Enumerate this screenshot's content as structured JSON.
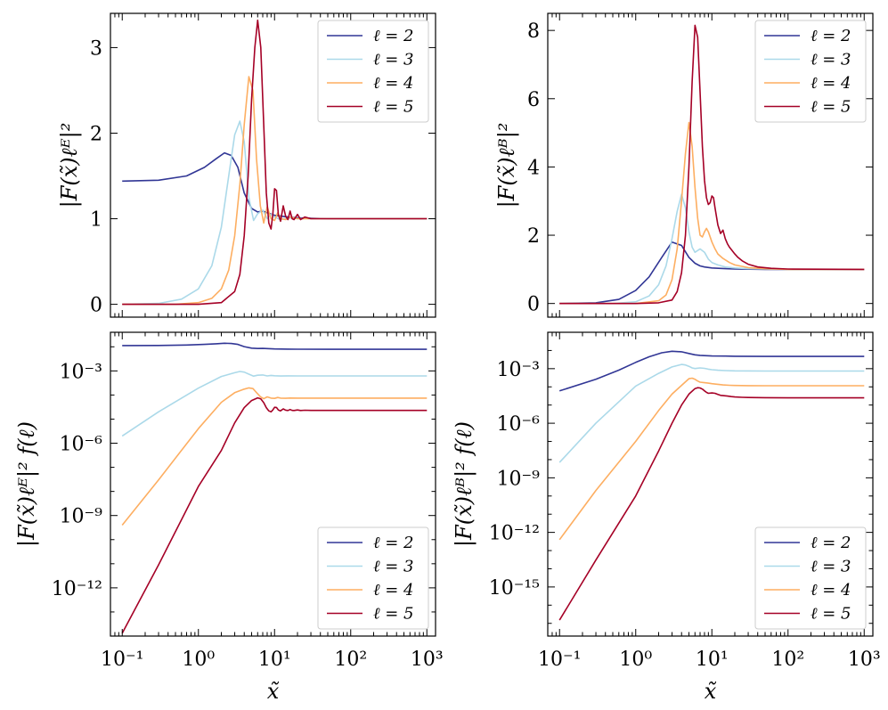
{
  "colors": {
    "l2": "#313695",
    "l3": "#abd9e9",
    "l4": "#fdae61",
    "l5": "#a50026"
  },
  "chart_data": [
    {
      "type": "line",
      "panel": "top-left",
      "xscale": "log",
      "yscale": "linear",
      "xlim": [
        0.07,
        1300
      ],
      "ylim": [
        -0.15,
        3.4
      ],
      "yticks": [
        0,
        1,
        2,
        3
      ],
      "ytick_labels": [
        "0",
        "1",
        "2",
        "3"
      ],
      "xlabel": "",
      "ylabel": "|F(x̃)ℓᴱ|²",
      "legend_position": "top-right",
      "series": [
        {
          "name": "ℓ = 2",
          "color_key": "l2",
          "x": [
            0.1,
            0.3,
            0.7,
            1.2,
            1.7,
            2.2,
            2.7,
            3.3,
            4,
            5,
            6,
            7,
            8,
            10,
            15,
            20,
            50,
            100,
            1000
          ],
          "y": [
            1.44,
            1.45,
            1.5,
            1.6,
            1.7,
            1.77,
            1.74,
            1.6,
            1.3,
            1.12,
            1.08,
            1.09,
            1.07,
            1.04,
            1.02,
            1.01,
            1.0,
            1.0,
            1.0
          ]
        },
        {
          "name": "ℓ = 3",
          "color_key": "l3",
          "x": [
            0.1,
            0.3,
            0.6,
            1,
            1.5,
            2,
            2.5,
            3.0,
            3.5,
            4,
            4.6,
            5.3,
            6,
            7,
            8,
            9,
            10,
            12,
            15,
            20,
            50,
            100,
            1000
          ],
          "y": [
            0.0,
            0.01,
            0.06,
            0.18,
            0.45,
            0.9,
            1.5,
            1.98,
            2.14,
            1.9,
            1.25,
            0.98,
            1.06,
            1.1,
            1.0,
            1.05,
            1.02,
            0.99,
            1.01,
            1.0,
            1.0,
            1.0,
            1.0
          ]
        },
        {
          "name": "ℓ = 4",
          "color_key": "l4",
          "x": [
            0.1,
            0.5,
            1,
            1.5,
            2,
            2.5,
            3,
            3.5,
            4.0,
            4.6,
            5.2,
            5.8,
            6.5,
            7.2,
            8,
            9,
            10,
            11,
            12,
            14,
            16,
            20,
            30,
            50,
            100,
            1000
          ],
          "y": [
            0.0,
            0.0,
            0.02,
            0.07,
            0.18,
            0.4,
            0.8,
            1.4,
            2.1,
            2.66,
            2.5,
            1.7,
            1.15,
            0.95,
            1.14,
            1.0,
            0.98,
            1.07,
            1.0,
            0.99,
            1.02,
            1.0,
            1.0,
            1.0,
            1.0,
            1.0
          ]
        },
        {
          "name": "ℓ = 5",
          "color_key": "l5",
          "x": [
            0.1,
            1,
            2,
            3,
            3.5,
            4,
            4.5,
            5,
            5.5,
            6.0,
            6.6,
            7.2,
            7.8,
            8.4,
            9,
            9.5,
            10,
            10.6,
            11.2,
            12,
            13,
            14,
            15,
            16,
            17,
            18,
            20,
            22,
            25,
            30,
            40,
            60,
            100,
            1000
          ],
          "y": [
            0.0,
            0.0,
            0.02,
            0.15,
            0.35,
            0.8,
            1.5,
            2.4,
            3.0,
            3.32,
            3.0,
            2.1,
            1.3,
            0.95,
            0.88,
            1.05,
            1.35,
            1.33,
            1.05,
            0.97,
            1.15,
            1.03,
            0.99,
            1.09,
            1.0,
            0.99,
            1.05,
            0.99,
            1.02,
            1.0,
            1.0,
            1.0,
            1.0,
            1.0
          ]
        }
      ]
    },
    {
      "type": "line",
      "panel": "top-right",
      "xscale": "log",
      "yscale": "linear",
      "xlim": [
        0.07,
        1300
      ],
      "ylim": [
        -0.4,
        8.5
      ],
      "yticks": [
        0,
        2,
        4,
        6,
        8
      ],
      "ytick_labels": [
        "0",
        "2",
        "4",
        "6",
        "8"
      ],
      "xlabel": "",
      "ylabel": "|F(x̃)ℓᴮ|²",
      "legend_position": "top-right",
      "series": [
        {
          "name": "ℓ = 2",
          "color_key": "l2",
          "x": [
            0.1,
            0.3,
            0.6,
            1,
            1.5,
            2.2,
            3,
            4,
            5,
            6,
            7,
            8,
            10,
            15,
            20,
            50,
            100,
            1000
          ],
          "y": [
            0.0,
            0.02,
            0.12,
            0.38,
            0.78,
            1.35,
            1.8,
            1.7,
            1.35,
            1.18,
            1.1,
            1.07,
            1.04,
            1.02,
            1.01,
            1.0,
            1.0,
            1.0
          ]
        },
        {
          "name": "ℓ = 3",
          "color_key": "l3",
          "x": [
            0.1,
            0.5,
            1,
            1.5,
            2,
            2.5,
            3,
            3.5,
            4,
            4.5,
            5,
            5.5,
            6,
            7,
            8,
            9,
            10,
            12,
            15,
            20,
            30,
            50,
            100,
            1000
          ],
          "y": [
            0.0,
            0.0,
            0.05,
            0.22,
            0.55,
            1.1,
            1.9,
            2.7,
            3.2,
            2.8,
            2.1,
            1.65,
            1.5,
            1.6,
            1.5,
            1.3,
            1.2,
            1.13,
            1.07,
            1.04,
            1.02,
            1.01,
            1.0,
            1.0
          ]
        },
        {
          "name": "ℓ = 4",
          "color_key": "l4",
          "x": [
            0.1,
            1,
            2,
            2.5,
            3,
            3.5,
            4,
            4.5,
            5,
            5.5,
            6,
            6.5,
            7,
            7.5,
            8,
            8.5,
            9,
            10,
            11,
            12,
            14,
            17,
            20,
            30,
            50,
            100,
            1000
          ],
          "y": [
            0.0,
            0.0,
            0.08,
            0.25,
            0.7,
            1.6,
            3.0,
            4.4,
            5.3,
            4.6,
            3.4,
            2.5,
            2.0,
            1.95,
            2.1,
            2.2,
            2.1,
            1.8,
            1.6,
            1.45,
            1.32,
            1.2,
            1.13,
            1.05,
            1.02,
            1.0,
            1.0
          ]
        },
        {
          "name": "ℓ = 5",
          "color_key": "l5",
          "x": [
            0.1,
            1,
            2,
            3,
            3.5,
            4,
            4.5,
            5,
            5.5,
            6,
            6.5,
            7,
            7.5,
            8,
            8.5,
            9,
            9.5,
            10,
            10.5,
            11,
            12,
            13,
            14,
            15,
            16,
            17,
            18,
            20,
            22,
            25,
            30,
            40,
            60,
            100,
            1000
          ],
          "y": [
            0.0,
            0.0,
            0.02,
            0.1,
            0.35,
            0.9,
            2.0,
            4.0,
            6.5,
            8.15,
            7.8,
            6.2,
            4.6,
            3.6,
            3.1,
            2.9,
            2.95,
            3.15,
            3.1,
            2.8,
            2.3,
            2.05,
            2.15,
            1.9,
            1.75,
            1.65,
            1.58,
            1.45,
            1.35,
            1.25,
            1.15,
            1.07,
            1.03,
            1.01,
            1.0
          ]
        }
      ]
    },
    {
      "type": "line",
      "panel": "bottom-left",
      "xscale": "log",
      "yscale": "log",
      "xlim": [
        0.07,
        1300
      ],
      "ylim": [
        1e-14,
        0.04
      ],
      "yticks": [
        1e-12,
        1e-09,
        1e-06,
        0.001
      ],
      "ytick_labels": [
        "10⁻¹²",
        "10⁻⁹",
        "10⁻⁶",
        "10⁻³"
      ],
      "xticks": [
        0.1,
        1,
        10,
        100,
        1000
      ],
      "xtick_labels": [
        "10⁻¹",
        "10⁰",
        "10¹",
        "10²",
        "10³"
      ],
      "xlabel": "x̃",
      "ylabel": "|F(x̃)ℓᴱ|² f(ℓ)",
      "legend_position": "bottom-right",
      "series": [
        {
          "name": "ℓ = 2",
          "color_key": "l2",
          "x": [
            0.1,
            0.3,
            0.7,
            1.2,
            1.7,
            2.2,
            2.7,
            3.3,
            4,
            5,
            6,
            7,
            8,
            10,
            15,
            20,
            50,
            100,
            1000
          ],
          "y": [
            0.0113,
            0.0114,
            0.0118,
            0.0126,
            0.0134,
            0.014,
            0.0137,
            0.0126,
            0.0102,
            0.0088,
            0.0085,
            0.00858,
            0.00842,
            0.00818,
            0.00802,
            0.00794,
            0.00786,
            0.00786,
            0.00786
          ]
        },
        {
          "name": "ℓ = 3",
          "color_key": "l3",
          "x": [
            0.1,
            0.3,
            1,
            2,
            3.0,
            3.5,
            4,
            4.6,
            5.3,
            6,
            7,
            8,
            9,
            10,
            12,
            15,
            20,
            50,
            100,
            1000
          ],
          "y": [
            2e-06,
            2e-05,
            0.000192,
            0.000589,
            0.000841,
            0.00095,
            0.00089,
            0.00073,
            0.00061,
            0.00066,
            0.00068,
            0.00062,
            0.00065,
            0.00063,
            0.000615,
            0.000622,
            0.00062,
            0.00062,
            0.00062,
            0.00062
          ]
        },
        {
          "name": "ℓ = 4",
          "color_key": "l4",
          "x": [
            0.1,
            0.3,
            1,
            2,
            3,
            4.0,
            4.6,
            5.2,
            5.8,
            6.5,
            7.2,
            8,
            9,
            10,
            11,
            12,
            14,
            16,
            20,
            50,
            100,
            1000
          ],
          "y": [
            4e-10,
            3e-08,
            4e-06,
            5e-05,
            0.000125,
            0.000175,
            0.000197,
            0.000185,
            0.000126,
            8.5e-05,
            7e-05,
            8.4e-05,
            7.4e-05,
            7.25e-05,
            7.9e-05,
            7.4e-05,
            7.3e-05,
            7.5e-05,
            7.4e-05,
            7.4e-05,
            7.4e-05,
            7.4e-05
          ]
        },
        {
          "name": "ℓ = 5",
          "color_key": "l5",
          "x": [
            0.1,
            0.3,
            1,
            2,
            3,
            4,
            5,
            6.0,
            6.6,
            7.2,
            7.8,
            8.4,
            9,
            9.5,
            10,
            10.6,
            11.2,
            12,
            13,
            14,
            15,
            16,
            17,
            18,
            20,
            22,
            25,
            30,
            50,
            100,
            1000
          ],
          "y": [
            1.3e-14,
            9e-12,
            1.6e-08,
            5e-07,
            7e-06,
            3e-05,
            5.9e-05,
            7.6e-05,
            6.9e-05,
            4.8e-05,
            3e-05,
            2.2e-05,
            2e-05,
            2.4e-05,
            3.1e-05,
            3.05e-05,
            2.4e-05,
            2.2e-05,
            2.65e-05,
            2.35e-05,
            2.27e-05,
            2.5e-05,
            2.3e-05,
            2.27e-05,
            2.4e-05,
            2.27e-05,
            2.33e-05,
            2.3e-05,
            2.3e-05,
            2.3e-05,
            2.3e-05
          ]
        }
      ]
    },
    {
      "type": "line",
      "panel": "bottom-right",
      "xscale": "log",
      "yscale": "log",
      "xlim": [
        0.07,
        1300
      ],
      "ylim": [
        2e-18,
        0.1
      ],
      "yticks": [
        1e-15,
        1e-12,
        1e-09,
        1e-06,
        0.001
      ],
      "ytick_labels": [
        "10⁻¹⁵",
        "10⁻¹²",
        "10⁻⁹",
        "10⁻⁶",
        "10⁻³"
      ],
      "xticks": [
        0.1,
        1,
        10,
        100,
        1000
      ],
      "xtick_labels": [
        "10⁻¹",
        "10⁰",
        "10¹",
        "10²",
        "10³"
      ],
      "xlabel": "x̃",
      "ylabel": "|F(x̃)ℓᴮ|² f(ℓ)",
      "legend_position": "bottom-right",
      "series": [
        {
          "name": "ℓ = 2",
          "color_key": "l2",
          "x": [
            0.1,
            0.3,
            0.6,
            1,
            1.5,
            2.2,
            3,
            4,
            5,
            6,
            7,
            8,
            10,
            15,
            20,
            50,
            100,
            1000
          ],
          "y": [
            6e-05,
            0.00026,
            0.00083,
            0.0022,
            0.0045,
            0.0075,
            0.0091,
            0.0085,
            0.0068,
            0.0058,
            0.0054,
            0.0052,
            0.005,
            0.0049,
            0.0048,
            0.0047,
            0.0047,
            0.0047
          ]
        },
        {
          "name": "ℓ = 3",
          "color_key": "l3",
          "x": [
            0.1,
            0.3,
            1,
            2,
            3,
            4,
            4.5,
            5,
            5.5,
            6,
            7,
            8,
            9,
            10,
            12,
            15,
            20,
            50,
            100,
            1000
          ],
          "y": [
            7e-09,
            1e-06,
            0.00011,
            0.00055,
            0.00125,
            0.0017,
            0.0016,
            0.00135,
            0.0011,
            0.00102,
            0.0011,
            0.00104,
            0.00094,
            0.00088,
            0.00082,
            0.00078,
            0.00076,
            0.00074,
            0.00074,
            0.00074
          ]
        },
        {
          "name": "ℓ = 4",
          "color_key": "l4",
          "x": [
            0.1,
            0.3,
            1,
            2,
            3,
            4,
            5,
            5.5,
            6,
            6.5,
            7,
            8,
            9,
            10,
            12,
            14,
            17,
            20,
            30,
            50,
            100,
            1000
          ],
          "y": [
            4e-13,
            2e-10,
            1e-07,
            5e-06,
            4e-05,
            0.00012,
            0.00028,
            0.0003,
            0.00026,
            0.00021,
            0.00018,
            0.00017,
            0.00016,
            0.00015,
            0.000138,
            0.000128,
            0.000122,
            0.000119,
            0.000116,
            0.000115,
            0.000115,
            0.000115
          ]
        },
        {
          "name": "ℓ = 5",
          "color_key": "l5",
          "x": [
            0.1,
            0.3,
            1,
            2,
            3,
            4,
            5,
            6,
            6.5,
            7,
            7.5,
            8,
            8.5,
            9,
            10,
            11,
            12,
            13,
            14,
            16,
            18,
            20,
            25,
            30,
            50,
            100,
            1000
          ],
          "y": [
            1.5e-17,
            3e-14,
            1e-10,
            3e-08,
            1e-06,
            1e-05,
            4e-05,
            8e-05,
            9e-05,
            8.7e-05,
            7.5e-05,
            6e-05,
            5e-05,
            4.4e-05,
            4.6e-05,
            4.4e-05,
            3.8e-05,
            3.4e-05,
            3.3e-05,
            3.1e-05,
            2.9e-05,
            2.8e-05,
            2.65e-05,
            2.6e-05,
            2.55e-05,
            2.5e-05,
            2.5e-05
          ]
        }
      ]
    }
  ]
}
